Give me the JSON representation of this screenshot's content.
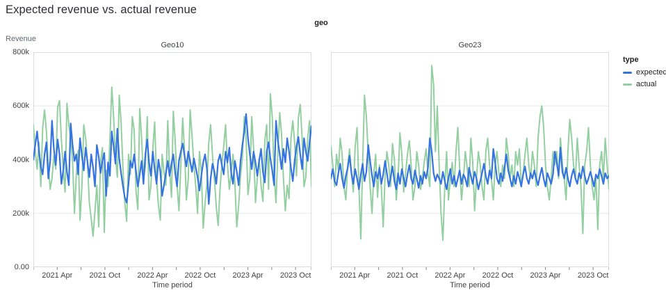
{
  "title": "Expected revenue vs. actual revenue",
  "facet_header": "geo",
  "y_axis": {
    "title": "Revenue",
    "tick_labels": [
      "800k",
      "600k",
      "400k",
      "200k",
      "0.00"
    ],
    "tick_values_k": [
      800,
      600,
      400,
      200,
      0
    ]
  },
  "x_axis": {
    "title": "Time period",
    "major_labels": [
      "2021 Apr",
      "2021 Oct",
      "2022 Apr",
      "2022 Oct",
      "2023 Apr",
      "2023 Oct"
    ],
    "major_months": [
      3,
      9,
      15,
      21,
      27,
      33
    ],
    "minor_months": [
      0,
      6,
      12,
      18,
      24,
      30,
      35
    ],
    "span_months": 35
  },
  "legend": {
    "title": "type",
    "items": [
      {
        "label": "expected",
        "color": "#3574e0"
      },
      {
        "label": "actual",
        "color": "#93cfa1"
      }
    ]
  },
  "colors": {
    "expected_line": "#3574e0",
    "actual_line": "#93cfa1",
    "gridline": "#e8e8e8",
    "plot_border": "#dadce0",
    "tick_mark": "#80868b",
    "title_text": "#2b2e33",
    "axis_text": "#424242"
  },
  "chart_data": {
    "type": "line",
    "title": "Expected revenue vs. actual revenue",
    "facet_field": "geo",
    "xlabel": "Time period",
    "ylabel": "Revenue",
    "x_start": "2021-01",
    "x_end": "2023-12",
    "x_unit": "weekly (approx.)",
    "y_unit": "revenue, values in thousands (k)",
    "ylim_k": [
      0,
      800
    ],
    "grid": true,
    "legend_position": "right",
    "facets": [
      {
        "name": "Geo10",
        "series": [
          {
            "name": "expected",
            "color": "#3574e0",
            "values_k": [
              400,
              455,
              505,
              430,
              375,
              345,
              420,
              465,
              330,
              395,
              545,
              440,
              380,
              475,
              420,
              310,
              360,
              430,
              355,
              305,
              535,
              455,
              395,
              420,
              345,
              480,
              415,
              360,
              445,
              390,
              335,
              420,
              370,
              300,
              455,
              410,
              350,
              395,
              425,
              265,
              390,
              340,
              505,
              450,
              385,
              515,
              405,
              350,
              300,
              260,
              240,
              310,
              395,
              370,
              420,
              355,
              300,
              345,
              395,
              310,
              420,
              475,
              390,
              340,
              430,
              365,
              310,
              400,
              355,
              265,
              305,
              350,
              395,
              340,
              385,
              420,
              350,
              300,
              395,
              430,
              460,
              415,
              375,
              430,
              395,
              355,
              405,
              370,
              335,
              285,
              340,
              390,
              420,
              365,
              235,
              330,
              385,
              355,
              310,
              395,
              420,
              380,
              345,
              430,
              390,
              445,
              350,
              310,
              395,
              355,
              305,
              395,
              455,
              505,
              570,
              480,
              420,
              365,
              430,
              390,
              340,
              395,
              440,
              355,
              315,
              430,
              465,
              405,
              360,
              305,
              545,
              470,
              420,
              365,
              440,
              390,
              480,
              430,
              370,
              320,
              395,
              450,
              485,
              420,
              365,
              480,
              430,
              395,
              465,
              525
            ]
          },
          {
            "name": "actual",
            "color": "#93cfa1",
            "values_k": [
              530,
              430,
              365,
              465,
              300,
              520,
              585,
              505,
              380,
              290,
              330,
              415,
              365,
              595,
              620,
              475,
              360,
              280,
              610,
              530,
              480,
              395,
              200,
              340,
              435,
              175,
              300,
              530,
              480,
              385,
              240,
              180,
              115,
              210,
              305,
              150,
              390,
              445,
              130,
              360,
              300,
              475,
              670,
              560,
              410,
              335,
              640,
              540,
              365,
              240,
              170,
              420,
              345,
              560,
              510,
              280,
              215,
              590,
              480,
              330,
              375,
              560,
              250,
              305,
              440,
              540,
              330,
              230,
              175,
              420,
              355,
              305,
              545,
              360,
              260,
              580,
              470,
              305,
              210,
              380,
              555,
              435,
              250,
              330,
              585,
              490,
              380,
              300,
              200,
              430,
              355,
              145,
              240,
              310,
              465,
              530,
              415,
              330,
              225,
              155,
              290,
              380,
              450,
              530,
              380,
              290,
              350,
              420,
              310,
              150,
              230,
              340,
              410,
              560,
              480,
              270,
              330,
              560,
              440,
              240,
              330,
              405,
              305,
              245,
              470,
              530,
              290,
              645,
              560,
              340,
              240,
              430,
              575,
              495,
              330,
              210,
              305,
              255,
              480,
              545,
              465,
              340,
              555,
              605,
              480,
              300,
              335,
              480,
              545,
              300
            ]
          }
        ]
      },
      {
        "name": "Geo23",
        "series": [
          {
            "name": "expected",
            "color": "#3574e0",
            "values_k": [
              330,
              365,
              320,
              305,
              350,
              385,
              330,
              295,
              340,
              370,
              415,
              350,
              310,
              365,
              330,
              290,
              345,
              385,
              320,
              355,
              455,
              395,
              340,
              300,
              355,
              330,
              370,
              310,
              345,
              395,
              350,
              300,
              335,
              375,
              320,
              290,
              350,
              310,
              365,
              330,
              300,
              345,
              380,
              330,
              310,
              360,
              330,
              295,
              340,
              310,
              355,
              330,
              370,
              480,
              430,
              350,
              320,
              345,
              330,
              310,
              355,
              320,
              290,
              330,
              365,
              310,
              340,
              300,
              330,
              360,
              310,
              345,
              330,
              300,
              370,
              340,
              310,
              355,
              330,
              290,
              320,
              350,
              385,
              340,
              310,
              360,
              330,
              440,
              390,
              330,
              310,
              350,
              320,
              370,
              420,
              360,
              330,
              300,
              340,
              310,
              355,
              330,
              300,
              345,
              375,
              330,
              310,
              350,
              330,
              360,
              330,
              305,
              340,
              370,
              330,
              300,
              350,
              330,
              310,
              345,
              430,
              390,
              340,
              445,
              355,
              330,
              370,
              330,
              300,
              340,
              365,
              330,
              310,
              350,
              330,
              375,
              340,
              310,
              330,
              355,
              330,
              300,
              345,
              330,
              365,
              340,
              310,
              350,
              330,
              340
            ]
          },
          {
            "name": "actual",
            "color": "#93cfa1",
            "values_k": [
              450,
              380,
              300,
              420,
              360,
              480,
              420,
              300,
              250,
              380,
              440,
              350,
              280,
              450,
              520,
              300,
              105,
              380,
              640,
              560,
              420,
              300,
              200,
              350,
              420,
              260,
              380,
              300,
              150,
              340,
              430,
              380,
              300,
              460,
              400,
              250,
              330,
              500,
              420,
              280,
              350,
              420,
              470,
              380,
              250,
              300,
              430,
              380,
              290,
              330,
              390,
              440,
              350,
              300,
              750,
              680,
              430,
              600,
              380,
              200,
              100,
              300,
              430,
              250,
              330,
              390,
              300,
              430,
              520,
              370,
              250,
              330,
              430,
              370,
              300,
              480,
              390,
              210,
              330,
              430,
              380,
              300,
              250,
              430,
              480,
              380,
              330,
              250,
              380,
              430,
              350,
              300,
              380,
              330,
              480,
              420,
              330,
              380,
              300,
              430,
              380,
              440,
              300,
              350,
              420,
              480,
              380,
              330,
              430,
              380,
              300,
              480,
              560,
              600,
              520,
              380,
              300,
              250,
              330,
              430,
              380,
              430,
              330,
              480,
              380,
              330,
              250,
              430,
              550,
              480,
              380,
              330,
              480,
              380,
              300,
              125,
              380,
              430,
              520,
              380,
              300,
              250,
              330,
              140,
              380,
              430,
              330,
              480,
              380,
              290
            ]
          }
        ]
      }
    ]
  }
}
